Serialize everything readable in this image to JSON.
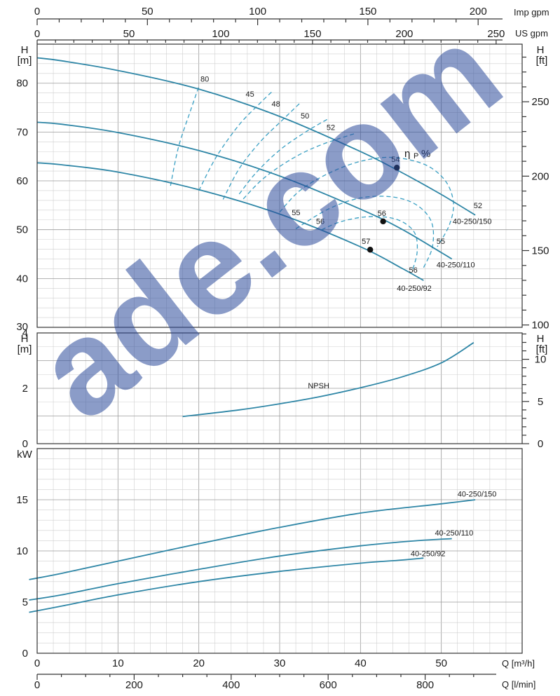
{
  "watermark": "ade.com",
  "top_axes": {
    "imp_gpm": {
      "unit": "Imp gpm",
      "ticks": [
        0,
        50,
        100,
        150,
        200
      ]
    },
    "us_gpm": {
      "unit": "US gpm",
      "ticks": [
        0,
        50,
        100,
        150,
        200,
        250
      ]
    }
  },
  "bottom_axes": {
    "q_m3h": {
      "unit": "Q [m³/h]",
      "ticks": [
        0,
        10,
        20,
        30,
        40,
        50
      ]
    },
    "q_lmin": {
      "unit": "Q [l/min]",
      "ticks": [
        0,
        200,
        400,
        600,
        800
      ]
    }
  },
  "chart_data": [
    {
      "type": "line",
      "panel": "head",
      "ylabel_left": "H [m]",
      "ylabel_right": "H [ft]",
      "xlim": [
        0,
        60
      ],
      "ylim": [
        30,
        88
      ],
      "yticks_left": [
        30,
        40,
        50,
        60,
        70,
        80
      ],
      "yticks_right": [
        100,
        150,
        200,
        250
      ],
      "series": [
        {
          "name": "40-250/150",
          "x": [
            0,
            3,
            10,
            20,
            30,
            40,
            45,
            50,
            54.2
          ],
          "y": [
            85.2,
            84.6,
            82.6,
            78.8,
            73.2,
            66.0,
            61.8,
            57.2,
            53.0
          ]
        },
        {
          "name": "40-250/110",
          "x": [
            0,
            3,
            10,
            20,
            30,
            40,
            45,
            50,
            51.3
          ],
          "y": [
            72.0,
            71.6,
            69.9,
            66.2,
            61.0,
            54.2,
            50.2,
            45.3,
            44.0
          ]
        },
        {
          "name": "40-250/92",
          "x": [
            0,
            3,
            10,
            20,
            30,
            40,
            45,
            47.8
          ],
          "y": [
            63.7,
            63.3,
            61.8,
            58.2,
            53.2,
            46.5,
            42.2,
            39.6
          ]
        }
      ],
      "operating_points": [
        {
          "x": 44.5,
          "y": 62.7,
          "label": "54"
        },
        {
          "x": 42.8,
          "y": 51.7,
          "label": "56"
        },
        {
          "x": 41.2,
          "y": 45.9,
          "label": "57"
        }
      ],
      "efficiency_label": {
        "symbol": "η",
        "sub": "P",
        "unit": "%"
      },
      "efficiency_contours": [
        {
          "label": "45",
          "x": [
            20.0,
            22.2,
            25.0,
            27.5,
            29.0
          ],
          "y": [
            58.0,
            65.0,
            71.5,
            75.8,
            78.2
          ]
        },
        {
          "label": "48",
          "x": [
            23.0,
            25.0,
            27.6,
            30.3,
            32.5
          ],
          "y": [
            56.2,
            62.5,
            68.0,
            72.4,
            75.9
          ]
        },
        {
          "label": "50",
          "x": [
            25.0,
            27.1,
            30.0,
            33.2,
            36.0
          ],
          "y": [
            57.3,
            61.7,
            66.3,
            70.0,
            72.7
          ]
        },
        {
          "label": "52",
          "x": [
            25.5,
            28.0,
            31.5,
            35.0,
            39.5
          ],
          "y": [
            56.3,
            60.5,
            64.5,
            67.3,
            69.8
          ]
        },
        {
          "label": "55",
          "x": [
            30.0,
            32.5,
            36.0,
            40.0,
            44.0,
            48.0,
            50.5,
            51.5,
            51.0,
            49.5
          ],
          "y": [
            53.6,
            58.0,
            61.5,
            64.0,
            64.8,
            63.3,
            60.0,
            55.5,
            51.0,
            46.5
          ]
        },
        {
          "label": "56",
          "x": [
            32.0,
            36.0,
            40.0,
            44.0,
            47.0,
            48.8,
            48.9,
            47.8
          ],
          "y": [
            50.2,
            54.2,
            56.5,
            56.7,
            55.0,
            51.5,
            46.5,
            42.2
          ]
        },
        {
          "label": "80",
          "x": [
            16.5,
            17.5,
            19.0,
            20.0
          ],
          "y": [
            59.0,
            67.0,
            74.5,
            79.3
          ]
        },
        {
          "label": "57",
          "x": [
            35.2,
            37.5,
            40.5,
            43.5,
            45.5,
            46.8,
            47.0,
            46.4
          ],
          "y": [
            50.0,
            51.6,
            52.6,
            52.5,
            51.3,
            49.0,
            45.3,
            41.5
          ]
        }
      ],
      "contour_labels": [
        {
          "text": "80",
          "x": 20.2,
          "y": 80.3
        },
        {
          "text": "45",
          "x": 25.8,
          "y": 77.2
        },
        {
          "text": "48",
          "x": 29.0,
          "y": 75.2
        },
        {
          "text": "50",
          "x": 32.6,
          "y": 72.8
        },
        {
          "text": "52",
          "x": 35.8,
          "y": 70.4
        },
        {
          "text": "55",
          "x": 31.5,
          "y": 53.0
        },
        {
          "text": "56",
          "x": 34.5,
          "y": 51.2
        },
        {
          "text": "52",
          "x": 54.0,
          "y": 54.4
        },
        {
          "text": "55",
          "x": 49.4,
          "y": 47.1
        },
        {
          "text": "56",
          "x": 46.0,
          "y": 41.2
        }
      ],
      "curve_labels": [
        {
          "text": "40-250/150",
          "x": 51.4,
          "y": 51.2
        },
        {
          "text": "40-250/110",
          "x": 49.4,
          "y": 42.3
        },
        {
          "text": "40-250/92",
          "x": 44.5,
          "y": 37.5
        }
      ]
    },
    {
      "type": "line",
      "panel": "npsh",
      "ylabel_left": "H [m]",
      "ylabel_right": "H [ft]",
      "xlim": [
        0,
        60
      ],
      "ylim": [
        0,
        4
      ],
      "yticks_left": [
        0,
        2,
        4
      ],
      "yticks_right": [
        0,
        5,
        10
      ],
      "series": [
        {
          "name": "NPSH",
          "x": [
            18,
            25,
            30,
            35,
            40,
            45,
            50,
            54
          ],
          "y": [
            0.98,
            1.22,
            1.44,
            1.7,
            2.02,
            2.4,
            2.92,
            3.65
          ]
        }
      ],
      "curve_labels": [
        {
          "text": "NPSH",
          "x": 33.5,
          "y": 2.0
        }
      ]
    },
    {
      "type": "line",
      "panel": "power",
      "ylabel_left": "kW",
      "xlim": [
        0,
        60
      ],
      "ylim": [
        0,
        20
      ],
      "yticks_left": [
        0,
        5,
        10,
        15
      ],
      "series": [
        {
          "name": "40-250/150",
          "x": [
            -1,
            3,
            10,
            20,
            30,
            40,
            50,
            54.2
          ],
          "y": [
            7.2,
            7.8,
            9.0,
            10.7,
            12.3,
            13.7,
            14.6,
            15.0
          ]
        },
        {
          "name": "40-250/110",
          "x": [
            -1,
            3,
            10,
            20,
            30,
            40,
            47,
            51.3
          ],
          "y": [
            5.2,
            5.7,
            6.8,
            8.2,
            9.5,
            10.5,
            11.0,
            11.2
          ]
        },
        {
          "name": "40-250/92",
          "x": [
            -1,
            3,
            10,
            20,
            30,
            40,
            45,
            47.8
          ],
          "y": [
            4.0,
            4.6,
            5.7,
            7.0,
            8.0,
            8.8,
            9.1,
            9.3
          ]
        }
      ],
      "curve_labels": [
        {
          "text": "40-250/150",
          "x": 52.0,
          "y": 15.3
        },
        {
          "text": "40-250/110",
          "x": 49.2,
          "y": 11.5
        },
        {
          "text": "40-250/92",
          "x": 46.2,
          "y": 9.5
        }
      ]
    }
  ]
}
